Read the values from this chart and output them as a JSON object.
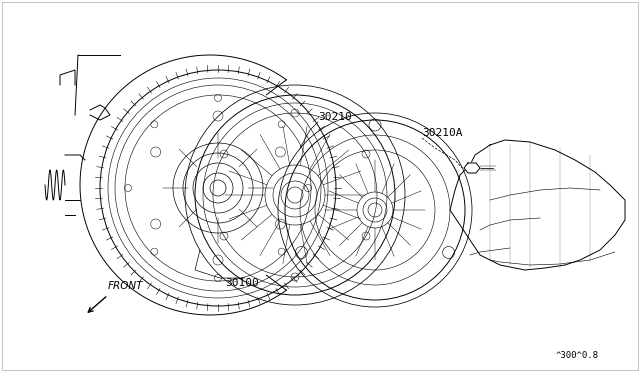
{
  "title": "",
  "background_color": "#ffffff",
  "border_color": "#000000",
  "line_color": "#000000",
  "label_30210": "30210",
  "label_30210A": "30210A",
  "label_30100": "30100",
  "label_front": "FRONT",
  "label_diagram_id": "^300^0.8",
  "fig_width": 6.4,
  "fig_height": 3.72,
  "dpi": 100
}
